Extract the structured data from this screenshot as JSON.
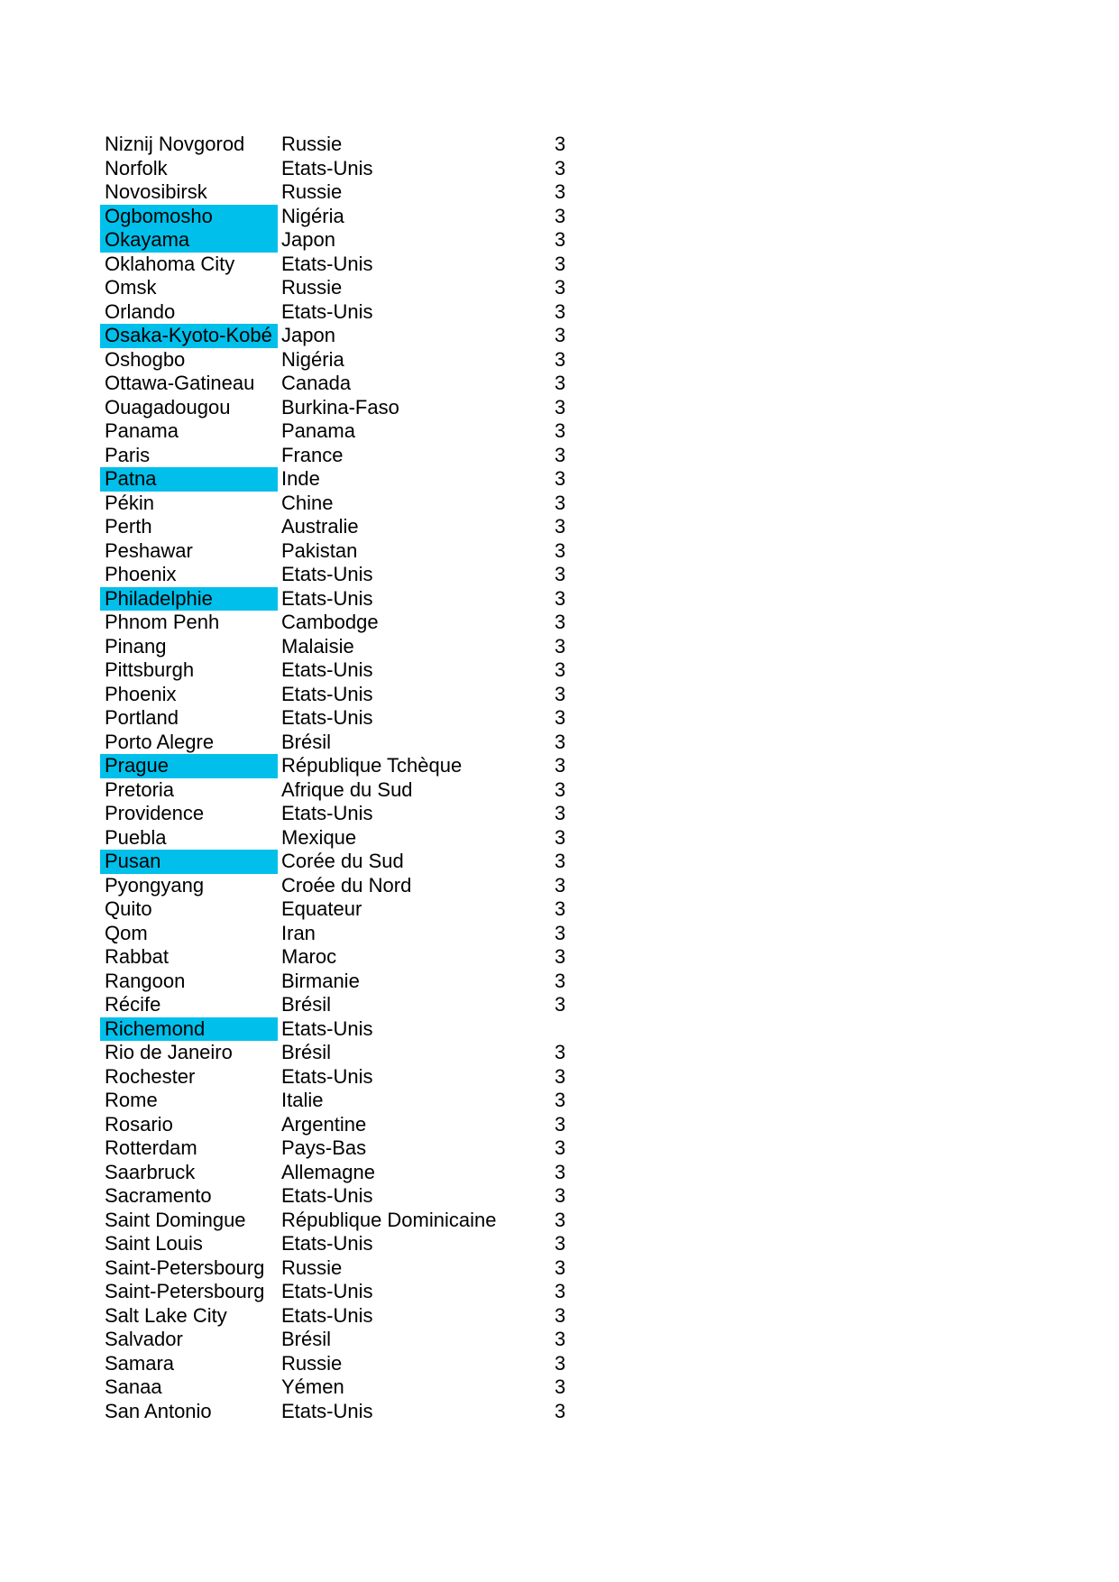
{
  "page": {
    "kind": "document-list-page"
  },
  "table": {
    "highlight_color": "#00bfea",
    "columns": [
      "city",
      "country",
      "value"
    ],
    "rows": [
      {
        "city": "Niznij Novgorod",
        "country": "Russie",
        "value": "3",
        "highlighted": false
      },
      {
        "city": "Norfolk",
        "country": "Etats-Unis",
        "value": "3",
        "highlighted": false
      },
      {
        "city": "Novosibirsk",
        "country": "Russie",
        "value": "3",
        "highlighted": false
      },
      {
        "city": "Ogbomosho",
        "country": "Nigéria",
        "value": "3",
        "highlighted": true
      },
      {
        "city": "Okayama",
        "country": "Japon",
        "value": "3",
        "highlighted": true
      },
      {
        "city": "Oklahoma City",
        "country": "Etats-Unis",
        "value": "3",
        "highlighted": false
      },
      {
        "city": "Omsk",
        "country": "Russie",
        "value": "3",
        "highlighted": false
      },
      {
        "city": "Orlando",
        "country": "Etats-Unis",
        "value": "3",
        "highlighted": false
      },
      {
        "city": "Osaka-Kyoto-Kobé",
        "country": "Japon",
        "value": "3",
        "highlighted": true
      },
      {
        "city": "Oshogbo",
        "country": "Nigéria",
        "value": "3",
        "highlighted": false
      },
      {
        "city": "Ottawa-Gatineau",
        "country": "Canada",
        "value": "3",
        "highlighted": false
      },
      {
        "city": "Ouagadougou",
        "country": "Burkina-Faso",
        "value": "3",
        "highlighted": false
      },
      {
        "city": "Panama",
        "country": "Panama",
        "value": "3",
        "highlighted": false
      },
      {
        "city": "Paris",
        "country": "France",
        "value": "3",
        "highlighted": false
      },
      {
        "city": "Patna",
        "country": "Inde",
        "value": "3",
        "highlighted": true
      },
      {
        "city": "Pékin",
        "country": "Chine",
        "value": "3",
        "highlighted": false
      },
      {
        "city": "Perth",
        "country": "Australie",
        "value": "3",
        "highlighted": false
      },
      {
        "city": "Peshawar",
        "country": "Pakistan",
        "value": "3",
        "highlighted": false
      },
      {
        "city": "Phoenix",
        "country": "Etats-Unis",
        "value": "3",
        "highlighted": false
      },
      {
        "city": "Philadelphie",
        "country": "Etats-Unis",
        "value": "3",
        "highlighted": true
      },
      {
        "city": "Phnom Penh",
        "country": "Cambodge",
        "value": "3",
        "highlighted": false
      },
      {
        "city": "Pinang",
        "country": "Malaisie",
        "value": "3",
        "highlighted": false
      },
      {
        "city": "Pittsburgh",
        "country": "Etats-Unis",
        "value": "3",
        "highlighted": false
      },
      {
        "city": "Phoenix",
        "country": "Etats-Unis",
        "value": "3",
        "highlighted": false
      },
      {
        "city": "Portland",
        "country": "Etats-Unis",
        "value": "3",
        "highlighted": false
      },
      {
        "city": "Porto Alegre",
        "country": "Brésil",
        "value": "3",
        "highlighted": false
      },
      {
        "city": "Prague",
        "country": "République Tchèque",
        "value": "3",
        "highlighted": true
      },
      {
        "city": "Pretoria",
        "country": "Afrique du Sud",
        "value": "3",
        "highlighted": false
      },
      {
        "city": "Providence",
        "country": "Etats-Unis",
        "value": "3",
        "highlighted": false
      },
      {
        "city": "Puebla",
        "country": "Mexique",
        "value": "3",
        "highlighted": false
      },
      {
        "city": "Pusan",
        "country": "Corée du Sud",
        "value": "3",
        "highlighted": true
      },
      {
        "city": "Pyongyang",
        "country": "Croée du Nord",
        "value": "3",
        "highlighted": false
      },
      {
        "city": "Quito",
        "country": "Equateur",
        "value": "3",
        "highlighted": false
      },
      {
        "city": "Qom",
        "country": "Iran",
        "value": "3",
        "highlighted": false
      },
      {
        "city": "Rabbat",
        "country": "Maroc",
        "value": "3",
        "highlighted": false
      },
      {
        "city": "Rangoon",
        "country": "Birmanie",
        "value": "3",
        "highlighted": false
      },
      {
        "city": "Récife",
        "country": "Brésil",
        "value": "3",
        "highlighted": false
      },
      {
        "city": "Richemond",
        "country": "Etats-Unis",
        "value": "",
        "highlighted": true
      },
      {
        "city": "Rio de Janeiro",
        "country": "Brésil",
        "value": "3",
        "highlighted": false
      },
      {
        "city": "Rochester",
        "country": "Etats-Unis",
        "value": "3",
        "highlighted": false
      },
      {
        "city": "Rome",
        "country": "Italie",
        "value": "3",
        "highlighted": false
      },
      {
        "city": "Rosario",
        "country": "Argentine",
        "value": "3",
        "highlighted": false
      },
      {
        "city": "Rotterdam",
        "country": "Pays-Bas",
        "value": "3",
        "highlighted": false
      },
      {
        "city": "Saarbruck",
        "country": "Allemagne",
        "value": "3",
        "highlighted": false
      },
      {
        "city": "Sacramento",
        "country": "Etats-Unis",
        "value": "3",
        "highlighted": false
      },
      {
        "city": "Saint Domingue",
        "country": "République Dominicaine",
        "value": "3",
        "highlighted": false
      },
      {
        "city": "Saint Louis",
        "country": "Etats-Unis",
        "value": "3",
        "highlighted": false
      },
      {
        "city": "Saint-Petersbourg",
        "country": "Russie",
        "value": "3",
        "highlighted": false
      },
      {
        "city": "Saint-Petersbourg",
        "country": "Etats-Unis",
        "value": "3",
        "highlighted": false
      },
      {
        "city": "Salt Lake City",
        "country": "Etats-Unis",
        "value": "3",
        "highlighted": false
      },
      {
        "city": "Salvador",
        "country": "Brésil",
        "value": "3",
        "highlighted": false
      },
      {
        "city": "Samara",
        "country": "Russie",
        "value": "3",
        "highlighted": false
      },
      {
        "city": "Sanaa",
        "country": "Yémen",
        "value": "3",
        "highlighted": false
      },
      {
        "city": "San Antonio",
        "country": "Etats-Unis",
        "value": "3",
        "highlighted": false
      }
    ]
  }
}
